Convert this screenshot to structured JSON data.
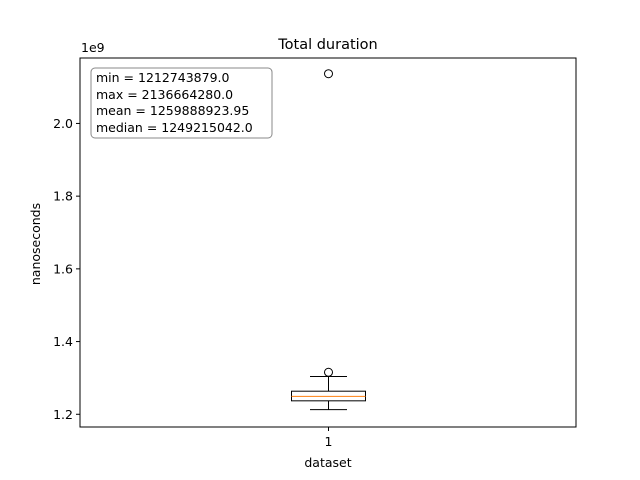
{
  "chart_data": {
    "type": "box",
    "title": "Total duration",
    "xlabel": "dataset",
    "ylabel": "nanoseconds",
    "scale_label": "1e9",
    "categories": [
      "1"
    ],
    "ylim": [
      1.165,
      2.18
    ],
    "yticks": [
      1.2,
      1.4,
      1.6,
      1.8,
      2.0
    ],
    "ytick_labels": [
      "1.2",
      "1.4",
      "1.6",
      "1.8",
      "2.0"
    ],
    "box": {
      "whisker_low": 1.2127,
      "q1": 1.237,
      "median": 1.2492,
      "q3": 1.2635,
      "whisker_high": 1.304,
      "outliers": [
        1.3155,
        2.1367
      ]
    },
    "stats": [
      "min = 1212743879.0",
      "max = 2136664280.0",
      "mean = 1259888923.95",
      "median = 1249215042.0"
    ],
    "colors": {
      "median": "#ff7f0e",
      "line": "#000000"
    },
    "grid": false
  }
}
